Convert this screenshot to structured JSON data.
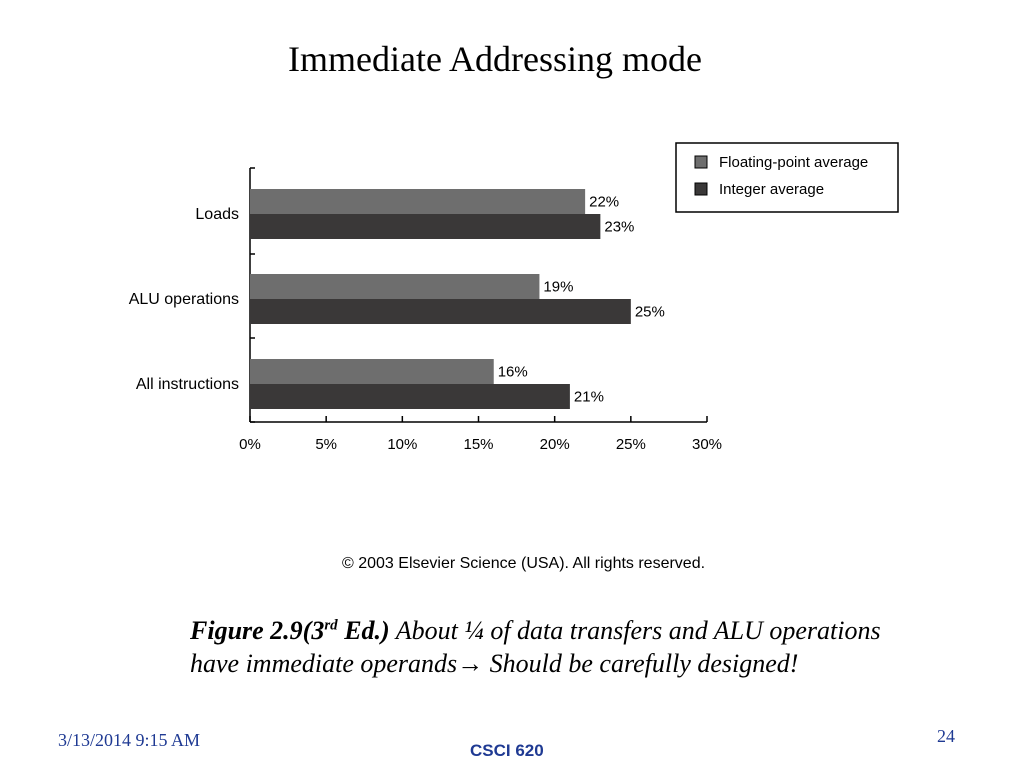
{
  "slide": {
    "title": "Immediate Addressing mode",
    "copyright": "© 2003 Elsevier Science (USA). All rights reserved.",
    "caption": {
      "figure_prefix": "Figure 2.9(3",
      "figure_sup": "rd",
      "figure_suffix": " Ed.)",
      "text_part1": " About ¼ of data transfers and ALU operations have immediate operands",
      "arrow": "→",
      "text_part2": " Should be carefully designed!"
    },
    "footer": {
      "date": "3/13/2014 9:15 AM",
      "course": "CSCI 620",
      "page": "24"
    }
  },
  "chart_data": {
    "type": "bar",
    "orientation": "horizontal",
    "categories": [
      "Loads",
      "ALU operations",
      "All instructions"
    ],
    "series": [
      {
        "name": "Floating-point average",
        "values": [
          22,
          19,
          16
        ],
        "color": "#6e6e6e"
      },
      {
        "name": "Integer average",
        "values": [
          23,
          25,
          21
        ],
        "color": "#3a3838"
      }
    ],
    "value_labels": [
      [
        "22%",
        "19%",
        "16%"
      ],
      [
        "23%",
        "25%",
        "21%"
      ]
    ],
    "xlim": [
      0,
      30
    ],
    "xticks": [
      0,
      5,
      10,
      15,
      20,
      25,
      30
    ],
    "xtick_labels": [
      "0%",
      "5%",
      "10%",
      "15%",
      "20%",
      "25%",
      "30%"
    ],
    "xlabel": "",
    "ylabel": "",
    "legend_position": "top-right",
    "grid": false
  }
}
